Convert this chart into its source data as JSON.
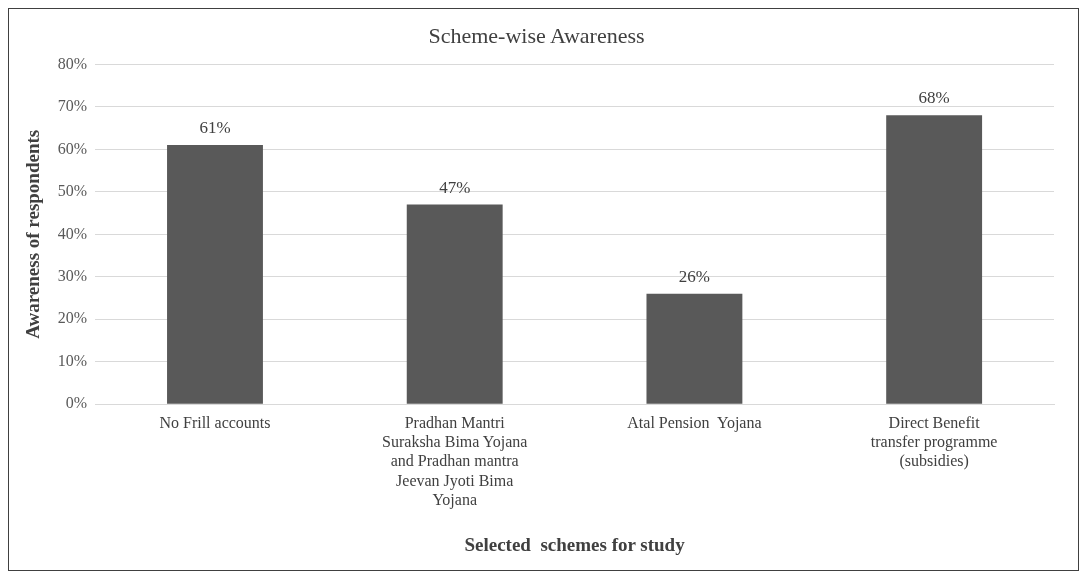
{
  "chart_data": {
    "type": "bar",
    "title": "Scheme-wise Awareness",
    "xlabel": "Selected  schemes for study",
    "ylabel": "Awareness of respondents",
    "categories": [
      "No Frill accounts",
      "Pradhan Mantri Suraksha Bima Yojana and Pradhan mantra Jeevan Jyoti Bima Yojana",
      "Atal Pension  Yojana",
      "Direct Benefit transfer programme (subsidies)"
    ],
    "values": [
      61,
      47,
      26,
      68
    ],
    "color": "#595959",
    "value_labels": [
      "61%",
      "47%",
      "26%",
      "68%"
    ],
    "ylim": [
      0,
      80
    ],
    "yticks": [
      {
        "value": 0,
        "label": "0%"
      },
      {
        "value": 10,
        "label": "10%"
      },
      {
        "value": 20,
        "label": "20%"
      },
      {
        "value": 30,
        "label": "30%"
      },
      {
        "value": 40,
        "label": "40%"
      },
      {
        "value": 50,
        "label": "50%"
      },
      {
        "value": 60,
        "label": "60%"
      },
      {
        "value": 70,
        "label": "70%"
      },
      {
        "value": 80,
        "label": "80%"
      }
    ],
    "grid": "y",
    "legend": false
  }
}
